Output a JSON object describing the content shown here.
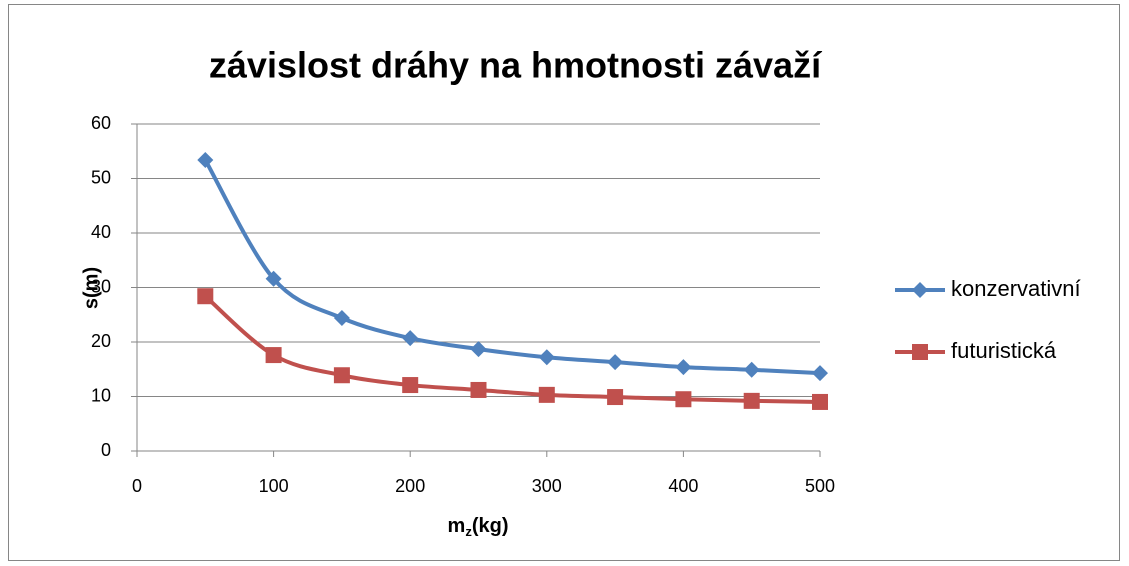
{
  "chart_data": {
    "type": "scatter-smooth",
    "title": "závislost dráhy na hmotnosti závaží",
    "xlabel": [
      "m",
      "z",
      "(kg)"
    ],
    "ylabel": "s(m)",
    "x": [
      50,
      100,
      150,
      200,
      250,
      300,
      350,
      400,
      450,
      500
    ],
    "series": [
      {
        "name": "konzervativní",
        "color": "#4f81bd",
        "marker": "diamond",
        "values": [
          53.4,
          31.6,
          24.4,
          20.7,
          18.7,
          17.2,
          16.3,
          15.4,
          14.9,
          14.3
        ]
      },
      {
        "name": "futuristická",
        "color": "#c0504d",
        "marker": "square",
        "values": [
          28.4,
          17.6,
          13.9,
          12.1,
          11.2,
          10.3,
          9.9,
          9.5,
          9.2,
          9.0
        ]
      }
    ],
    "xlim": [
      0,
      500
    ],
    "xticks": [
      0,
      100,
      200,
      300,
      400,
      500
    ],
    "ylim": [
      0,
      60
    ],
    "yticks": [
      0,
      10,
      20,
      30,
      40,
      50,
      60
    ],
    "grid": true,
    "legend": "right"
  }
}
